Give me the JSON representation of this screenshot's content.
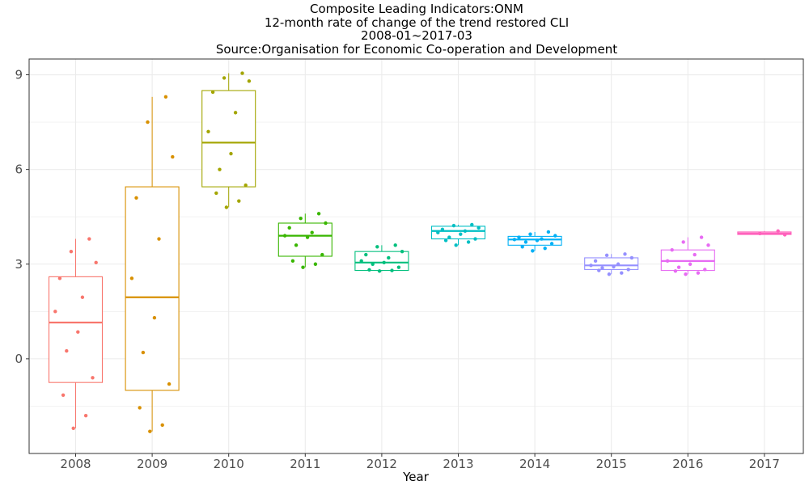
{
  "chart_data": {
    "type": "boxplot",
    "title": "Composite Leading Indicators:ONM",
    "subtitle_lines": [
      "12-month rate of change of the trend restored CLI",
      "2008-01~2017-03",
      "Source:Organisation for Economic Co-operation and Development"
    ],
    "xlabel": "Year",
    "ylabel": "",
    "ylim": [
      -3.0,
      9.5
    ],
    "yticks": [
      0,
      3,
      6,
      9
    ],
    "grid": true,
    "legend": "none",
    "categories": [
      "2008",
      "2009",
      "2010",
      "2011",
      "2012",
      "2013",
      "2014",
      "2015",
      "2016",
      "2017"
    ],
    "colors": [
      "#F8766D",
      "#D89000",
      "#A3A500",
      "#39B600",
      "#00BF7D",
      "#00BFC4",
      "#00B0F6",
      "#9590FF",
      "#E76BF3",
      "#FF62BC"
    ],
    "boxes": [
      {
        "category": "2008",
        "q1": -0.75,
        "median": 1.15,
        "q3": 2.6,
        "whisker_low": -2.2,
        "whisker_high": 3.8
      },
      {
        "category": "2009",
        "q1": -1.0,
        "median": 1.95,
        "q3": 5.45,
        "whisker_low": -2.3,
        "whisker_high": 8.3
      },
      {
        "category": "2010",
        "q1": 5.45,
        "median": 6.85,
        "q3": 8.5,
        "whisker_low": 4.8,
        "whisker_high": 9.05
      },
      {
        "category": "2011",
        "q1": 3.25,
        "median": 3.9,
        "q3": 4.3,
        "whisker_low": 2.9,
        "whisker_high": 4.6
      },
      {
        "category": "2012",
        "q1": 2.8,
        "median": 3.05,
        "q3": 3.4,
        "whisker_low": 2.78,
        "whisker_high": 3.6
      },
      {
        "category": "2013",
        "q1": 3.8,
        "median": 4.05,
        "q3": 4.2,
        "whisker_low": 3.6,
        "whisker_high": 4.25
      },
      {
        "category": "2014",
        "q1": 3.6,
        "median": 3.78,
        "q3": 3.88,
        "whisker_low": 3.42,
        "whisker_high": 4.02
      },
      {
        "category": "2015",
        "q1": 2.83,
        "median": 2.96,
        "q3": 3.2,
        "whisker_low": 2.68,
        "whisker_high": 3.32
      },
      {
        "category": "2016",
        "q1": 2.8,
        "median": 3.1,
        "q3": 3.45,
        "whisker_low": 2.68,
        "whisker_high": 3.85
      },
      {
        "category": "2017",
        "q1": 3.94,
        "median": 3.97,
        "q3": 4.02,
        "whisker_low": 3.93,
        "whisker_high": 4.05
      }
    ],
    "points": [
      {
        "category": "2008",
        "values": [
          3.8,
          3.4,
          3.05,
          2.55,
          1.95,
          1.5,
          0.85,
          0.25,
          -0.6,
          -1.15,
          -1.8,
          -2.2
        ]
      },
      {
        "category": "2009",
        "values": [
          8.3,
          7.5,
          6.4,
          5.1,
          3.8,
          2.55,
          1.3,
          0.2,
          -0.8,
          -1.55,
          -2.1,
          -2.3
        ]
      },
      {
        "category": "2010",
        "values": [
          9.05,
          8.9,
          8.8,
          8.45,
          7.8,
          7.2,
          6.5,
          6.0,
          5.5,
          5.25,
          5.0,
          4.8
        ]
      },
      {
        "category": "2011",
        "values": [
          4.6,
          4.45,
          4.3,
          4.15,
          4.0,
          3.9,
          3.85,
          3.6,
          3.3,
          3.1,
          3.0,
          2.9
        ]
      },
      {
        "category": "2012",
        "values": [
          3.6,
          3.55,
          3.4,
          3.3,
          3.2,
          3.1,
          3.05,
          3.0,
          2.9,
          2.82,
          2.8,
          2.78
        ]
      },
      {
        "category": "2013",
        "values": [
          4.25,
          4.22,
          4.15,
          4.1,
          4.05,
          4.0,
          3.95,
          3.85,
          3.8,
          3.75,
          3.7,
          3.6
        ]
      },
      {
        "category": "2014",
        "values": [
          4.02,
          3.95,
          3.9,
          3.85,
          3.8,
          3.78,
          3.75,
          3.7,
          3.65,
          3.55,
          3.5,
          3.42
        ]
      },
      {
        "category": "2015",
        "values": [
          3.32,
          3.28,
          3.2,
          3.1,
          3.0,
          2.96,
          2.92,
          2.88,
          2.83,
          2.8,
          2.72,
          2.68
        ]
      },
      {
        "category": "2016",
        "values": [
          3.85,
          3.7,
          3.6,
          3.45,
          3.3,
          3.1,
          3.0,
          2.9,
          2.83,
          2.78,
          2.72,
          2.68
        ]
      },
      {
        "category": "2017",
        "values": [
          4.05,
          3.97,
          3.93
        ]
      }
    ]
  }
}
